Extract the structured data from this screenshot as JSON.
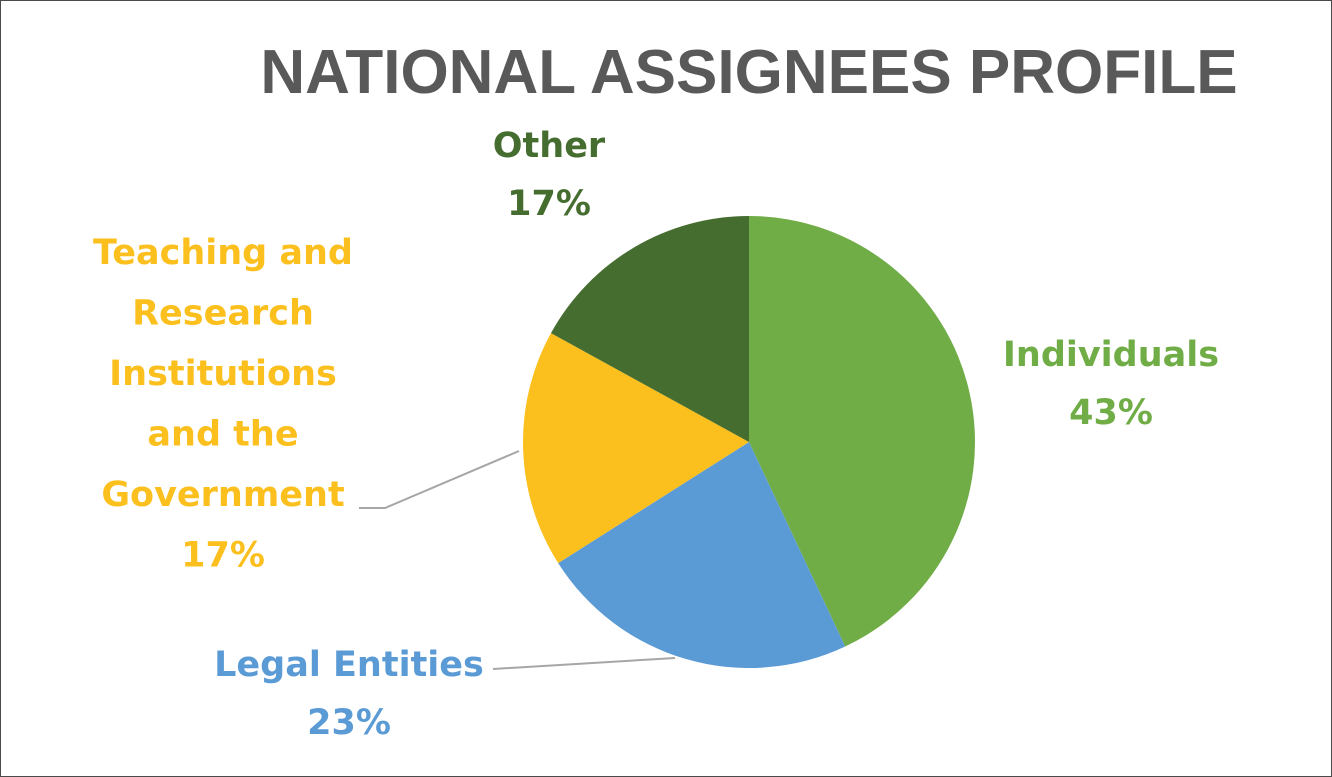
{
  "chart_data": {
    "type": "pie",
    "title": "NATIONAL ASSIGNEES PROFILE",
    "start_angle_deg": 0,
    "direction": "clockwise",
    "slices": [
      {
        "label": "Individuals",
        "value": 43,
        "value_label": "43%",
        "label_lines": [
          "Individuals"
        ],
        "color": "#70ad47"
      },
      {
        "label": "Legal Entities",
        "value": 23,
        "value_label": "23%",
        "label_lines": [
          "Legal Entities"
        ],
        "color": "#5b9bd5"
      },
      {
        "label": "Teaching and Research Institutions and the Government",
        "value": 17,
        "value_label": "17%",
        "label_lines": [
          "Teaching and",
          "Research",
          "Institutions",
          "and the",
          "Government"
        ],
        "color": "#fbbf1e"
      },
      {
        "label": "Other",
        "value": 17,
        "value_label": "17%",
        "label_lines": [
          "Other"
        ],
        "color": "#456d2f"
      }
    ],
    "legend": "none",
    "data_labels": "outside with leader lines"
  }
}
